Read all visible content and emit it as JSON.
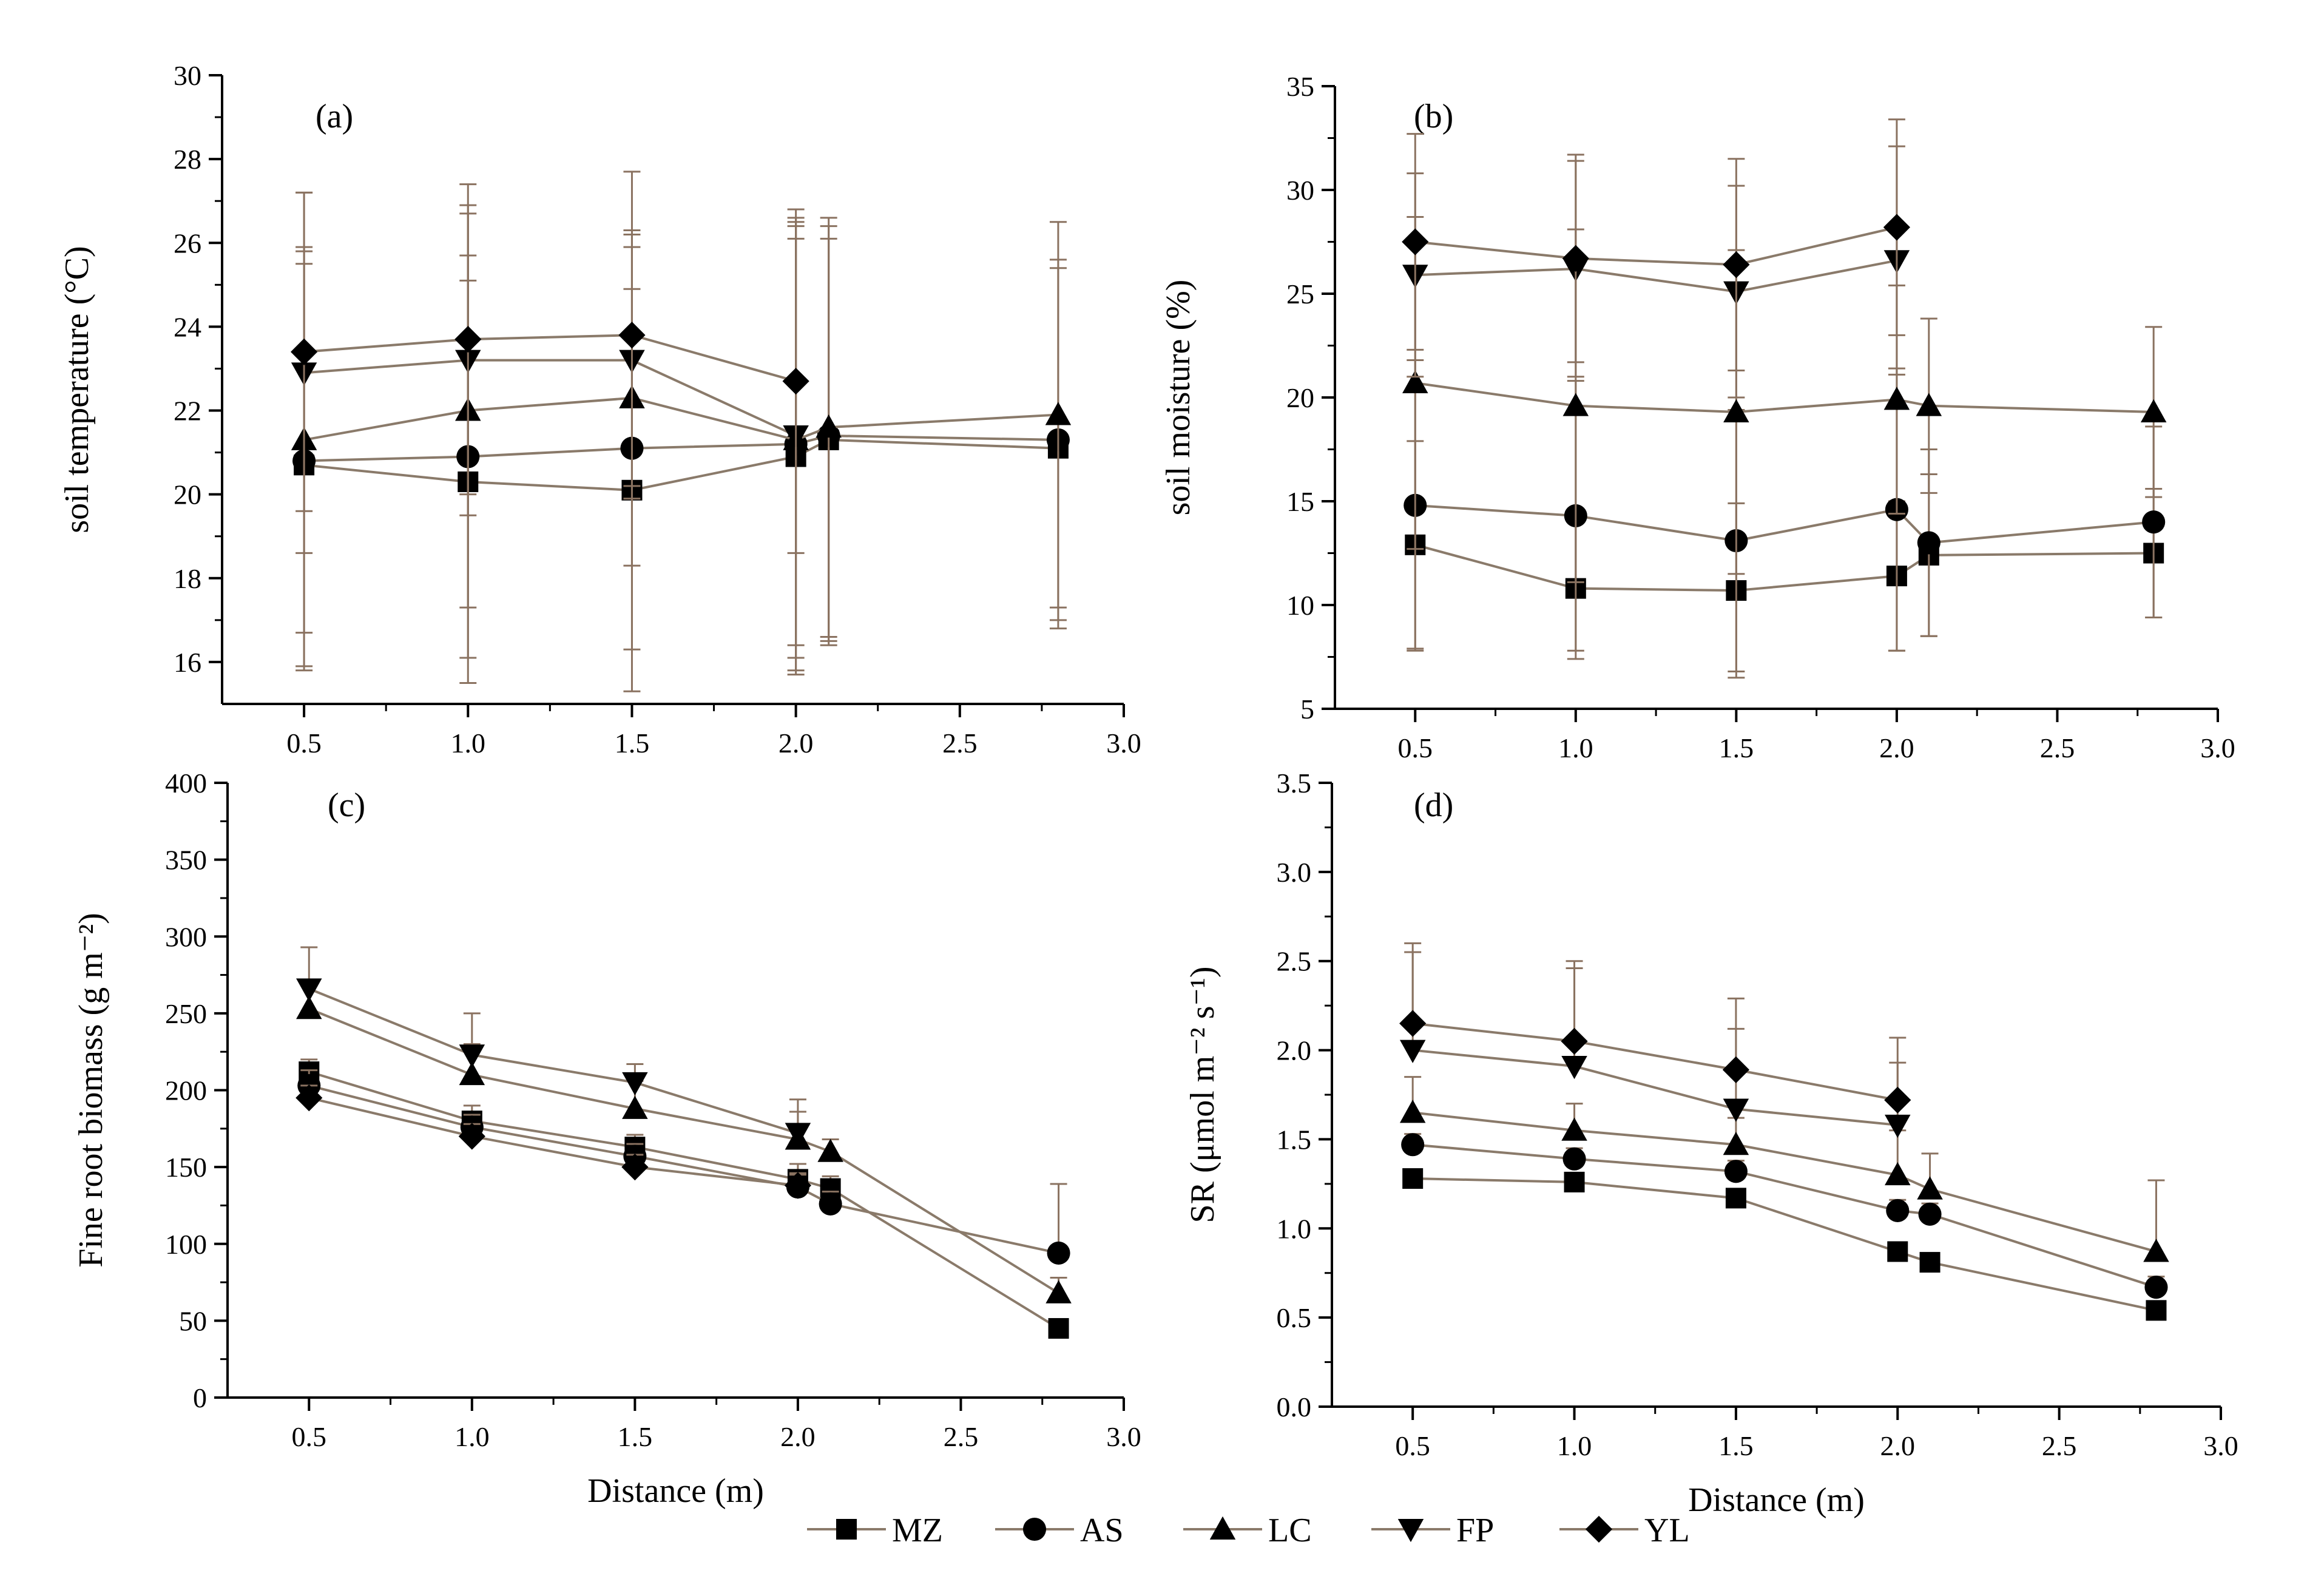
{
  "figure": {
    "legend": [
      {
        "code": "MZ",
        "label": "MZ",
        "marker": "square"
      },
      {
        "code": "AS",
        "label": "AS",
        "marker": "circle"
      },
      {
        "code": "LC",
        "label": "LC",
        "marker": "triangle-up"
      },
      {
        "code": "FP",
        "label": "FP",
        "marker": "triangle-down"
      },
      {
        "code": "YL",
        "label": "YL",
        "marker": "diamond"
      }
    ],
    "colors": {
      "line": "#8a7a6a",
      "error_bar": "#8a7260",
      "marker": "#000000",
      "axis": "#000000"
    }
  },
  "chart_data": [
    {
      "id": "a",
      "type": "line",
      "panel_label": "(a)",
      "title": "",
      "xlabel": "",
      "ylabel": "soil temperature (°C)",
      "xlim": [
        0.25,
        3.0
      ],
      "ylim": [
        15,
        30
      ],
      "x_ticks": [
        0.5,
        1.0,
        1.5,
        2.0,
        2.5,
        3.0
      ],
      "x_tick_labels": [
        "0.5",
        "1.0",
        "1.5",
        "2.0",
        "2.5",
        "3.0"
      ],
      "y_ticks": [
        16,
        18,
        20,
        22,
        24,
        26,
        28,
        30
      ],
      "y_tick_labels": [
        "16",
        "18",
        "20",
        "22",
        "24",
        "26",
        "28",
        "30"
      ],
      "error_bars": "both",
      "series": [
        {
          "name": "MZ",
          "x": [
            0.5,
            1.0,
            1.5,
            2.0,
            2.1,
            2.8
          ],
          "y": [
            20.7,
            20.3,
            20.1,
            20.9,
            21.3,
            21.1
          ],
          "err": [
            4.8,
            4.8,
            4.8,
            5.2,
            4.8,
            4.3
          ]
        },
        {
          "name": "AS",
          "x": [
            0.5,
            1.0,
            1.5,
            2.0,
            2.1,
            2.8
          ],
          "y": [
            20.8,
            20.9,
            21.1,
            21.2,
            21.4,
            21.3
          ],
          "err": [
            5.0,
            4.8,
            4.8,
            5.4,
            5.0,
            4.3
          ]
        },
        {
          "name": "LC",
          "x": [
            0.5,
            1.0,
            1.5,
            2.0,
            2.1,
            2.8
          ],
          "y": [
            21.3,
            22.0,
            22.3,
            21.3,
            21.6,
            21.9
          ],
          "err": [
            4.6,
            4.7,
            4.0,
            5.2,
            5.0,
            4.6
          ]
        },
        {
          "name": "FP",
          "x": [
            0.5,
            1.0,
            1.5,
            2.0
          ],
          "y": [
            22.9,
            23.2,
            23.2,
            21.4
          ],
          "err": [
            4.3,
            3.7,
            3.0,
            5.0
          ]
        },
        {
          "name": "YL",
          "x": [
            0.5,
            1.0,
            1.5,
            2.0
          ],
          "y": [
            23.4,
            23.7,
            23.8,
            22.7
          ],
          "err": [
            3.8,
            3.7,
            3.9,
            4.1
          ]
        }
      ]
    },
    {
      "id": "b",
      "type": "line",
      "panel_label": "(b)",
      "title": "",
      "xlabel": "",
      "ylabel": "soil moisture (%)",
      "xlim": [
        0.25,
        3.0
      ],
      "ylim": [
        5,
        35
      ],
      "x_ticks": [
        0.5,
        1.0,
        1.5,
        2.0,
        2.5,
        3.0
      ],
      "x_tick_labels": [
        "0.5",
        "1.0",
        "1.5",
        "2.0",
        "2.5",
        "3.0"
      ],
      "y_ticks": [
        5,
        10,
        15,
        20,
        25,
        30,
        35
      ],
      "y_tick_labels": [
        "5",
        "10",
        "15",
        "20",
        "25",
        "30",
        "35"
      ],
      "error_bars": "both",
      "series": [
        {
          "name": "MZ",
          "x": [
            0.5,
            1.0,
            1.5,
            2.0,
            2.1,
            2.8
          ],
          "y": [
            12.9,
            10.8,
            10.7,
            11.4,
            12.4,
            12.5
          ],
          "err": [
            5.0,
            3.4,
            4.2,
            3.6,
            3.9,
            3.1
          ]
        },
        {
          "name": "AS",
          "x": [
            0.5,
            1.0,
            1.5,
            2.0,
            2.1,
            2.8
          ],
          "y": [
            14.8,
            14.3,
            13.1,
            14.6,
            13.0,
            14.0
          ],
          "err": [
            7.0,
            6.5,
            6.3,
            6.8,
            4.5,
            4.6
          ]
        },
        {
          "name": "LC",
          "x": [
            0.5,
            1.0,
            1.5,
            2.0,
            2.1,
            2.8
          ],
          "y": [
            20.7,
            19.6,
            19.3,
            19.9,
            19.6,
            19.3
          ],
          "err": [
            8.0,
            8.5,
            7.8,
            5.5,
            4.2,
            4.1
          ]
        },
        {
          "name": "FP",
          "x": [
            0.5,
            1.0,
            1.5,
            2.0
          ],
          "y": [
            25.9,
            26.2,
            25.1,
            26.6
          ],
          "err": [
            4.9,
            5.2,
            5.1,
            5.5
          ]
        },
        {
          "name": "YL",
          "x": [
            0.5,
            1.0,
            1.5,
            2.0
          ],
          "y": [
            27.5,
            26.7,
            26.4,
            28.2
          ],
          "err": [
            5.2,
            5.0,
            5.1,
            5.2
          ]
        }
      ]
    },
    {
      "id": "c",
      "type": "line",
      "panel_label": "(c)",
      "title": "",
      "xlabel": "Distance (m)",
      "ylabel": "Fine root biomass (g m⁻²)",
      "xlim": [
        0.25,
        3.0
      ],
      "ylim": [
        0,
        400
      ],
      "x_ticks": [
        0.5,
        1.0,
        1.5,
        2.0,
        2.5,
        3.0
      ],
      "x_tick_labels": [
        "0.5",
        "1.0",
        "1.5",
        "2.0",
        "2.5",
        "3.0"
      ],
      "y_ticks": [
        0,
        50,
        100,
        150,
        200,
        250,
        300,
        350,
        400
      ],
      "y_tick_labels": [
        "0",
        "50",
        "100",
        "150",
        "200",
        "250",
        "300",
        "350",
        "400"
      ],
      "error_bars": "up",
      "series": [
        {
          "name": "MZ",
          "x": [
            0.5,
            1.0,
            1.5,
            2.0,
            2.1,
            2.8
          ],
          "y": [
            212,
            180,
            163,
            142,
            136,
            45
          ],
          "err": [
            8,
            10,
            8,
            10,
            8,
            5
          ]
        },
        {
          "name": "AS",
          "x": [
            0.5,
            1.0,
            1.5,
            2.0,
            2.1,
            2.8
          ],
          "y": [
            203,
            176,
            157,
            137,
            126,
            94
          ],
          "err": [
            10,
            8,
            8,
            8,
            8,
            45
          ]
        },
        {
          "name": "LC",
          "x": [
            0.5,
            1.0,
            1.5,
            2.0,
            2.1,
            2.8
          ],
          "y": [
            253,
            210,
            188,
            168,
            160,
            68
          ],
          "err": [
            15,
            20,
            18,
            18,
            8,
            10
          ]
        },
        {
          "name": "FP",
          "x": [
            0.5,
            1.0,
            1.5,
            2.0
          ],
          "y": [
            266,
            223,
            205,
            172
          ],
          "err": [
            27,
            27,
            12,
            22
          ]
        },
        {
          "name": "YL",
          "x": [
            0.5,
            1.0,
            1.5,
            2.0
          ],
          "y": [
            195,
            170,
            150,
            138
          ],
          "err": [
            8,
            8,
            8,
            8
          ]
        }
      ]
    },
    {
      "id": "d",
      "type": "line",
      "panel_label": "(d)",
      "title": "",
      "xlabel": "Distance (m)",
      "ylabel": "SR (μmol m⁻² s⁻¹)",
      "xlim": [
        0.25,
        3.0
      ],
      "ylim": [
        0,
        3.5
      ],
      "x_ticks": [
        0.5,
        1.0,
        1.5,
        2.0,
        2.5,
        3.0
      ],
      "x_tick_labels": [
        "0.5",
        "1.0",
        "1.5",
        "2.0",
        "2.5",
        "3.0"
      ],
      "y_ticks": [
        0,
        0.5,
        1.0,
        1.5,
        2.0,
        2.5,
        3.0,
        3.5
      ],
      "y_tick_labels": [
        "0.0",
        "0.5",
        "1.0",
        "1.5",
        "2.0",
        "2.5",
        "3.0",
        "3.5"
      ],
      "error_bars": "up",
      "series": [
        {
          "name": "MZ",
          "x": [
            0.5,
            1.0,
            1.5,
            2.0,
            2.1,
            2.8
          ],
          "y": [
            1.28,
            1.26,
            1.17,
            0.87,
            0.81,
            0.54
          ],
          "err": [
            0.05,
            0.05,
            0.05,
            0.05,
            0.05,
            0.05
          ]
        },
        {
          "name": "AS",
          "x": [
            0.5,
            1.0,
            1.5,
            2.0,
            2.1,
            2.8
          ],
          "y": [
            1.47,
            1.39,
            1.32,
            1.1,
            1.08,
            0.67
          ],
          "err": [
            0.06,
            0.06,
            0.06,
            0.06,
            0.06,
            0.06
          ]
        },
        {
          "name": "LC",
          "x": [
            0.5,
            1.0,
            1.5,
            2.0,
            2.1,
            2.8
          ],
          "y": [
            1.65,
            1.55,
            1.47,
            1.3,
            1.22,
            0.87
          ],
          "err": [
            0.2,
            0.15,
            0.15,
            0.25,
            0.2,
            0.4
          ]
        },
        {
          "name": "FP",
          "x": [
            0.5,
            1.0,
            1.5,
            2.0
          ],
          "y": [
            2.0,
            1.91,
            1.67,
            1.58
          ],
          "err": [
            0.55,
            0.55,
            0.45,
            0.35
          ]
        },
        {
          "name": "YL",
          "x": [
            0.5,
            1.0,
            1.5,
            2.0
          ],
          "y": [
            2.15,
            2.05,
            1.89,
            1.72
          ],
          "err": [
            0.45,
            0.45,
            0.4,
            0.35
          ]
        }
      ]
    }
  ]
}
